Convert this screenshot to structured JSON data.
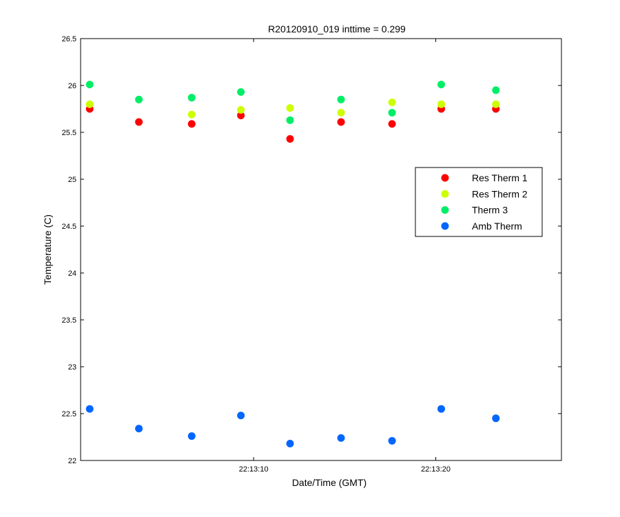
{
  "chart_data": {
    "type": "scatter",
    "title": "R20120910_019 inttime = 0.299",
    "xlabel": "Date/Time (GMT)",
    "ylabel": "Temperature (C)",
    "ylim": [
      22,
      26.5
    ],
    "xlim": [
      0.5,
      26.9
    ],
    "yticks": [
      22,
      22.5,
      23,
      23.5,
      24,
      24.5,
      25,
      25.5,
      26,
      26.5
    ],
    "yticklabels": [
      "22",
      "22.5",
      "23",
      "23.5",
      "24",
      "24.5",
      "25",
      "25.5",
      "26",
      "26.5"
    ],
    "xticks": [
      10,
      20
    ],
    "xticklabels": [
      "22:13:10",
      "22:13:20"
    ],
    "grid": false,
    "legend_position": "right",
    "series": [
      {
        "name": "Res Therm 1",
        "color": "#ff0000",
        "x": [
          1,
          3.7,
          6.6,
          9.3,
          12,
          14.8,
          17.6,
          20.3,
          23.3
        ],
        "y": [
          25.75,
          25.61,
          25.59,
          25.68,
          25.43,
          25.61,
          25.59,
          25.75,
          25.75
        ]
      },
      {
        "name": "Res Therm 2",
        "color": "#ccff00",
        "x": [
          1,
          6.6,
          9.3,
          12,
          14.8,
          17.6,
          20.3,
          23.3
        ],
        "y": [
          25.8,
          25.69,
          25.74,
          25.76,
          25.71,
          25.82,
          25.8,
          25.8
        ]
      },
      {
        "name": "Therm 3",
        "color": "#00ee66",
        "x": [
          1,
          3.7,
          6.6,
          9.3,
          12,
          14.8,
          17.6,
          20.3,
          23.3
        ],
        "y": [
          26.01,
          25.85,
          25.87,
          25.93,
          25.63,
          25.85,
          25.71,
          26.01,
          25.95
        ]
      },
      {
        "name": "Amb Therm",
        "color": "#0066ff",
        "x": [
          1,
          3.7,
          6.6,
          9.3,
          12,
          14.8,
          17.6,
          20.3,
          23.3
        ],
        "y": [
          22.55,
          22.34,
          22.26,
          22.48,
          22.18,
          22.24,
          22.21,
          22.55,
          22.45
        ]
      }
    ]
  }
}
